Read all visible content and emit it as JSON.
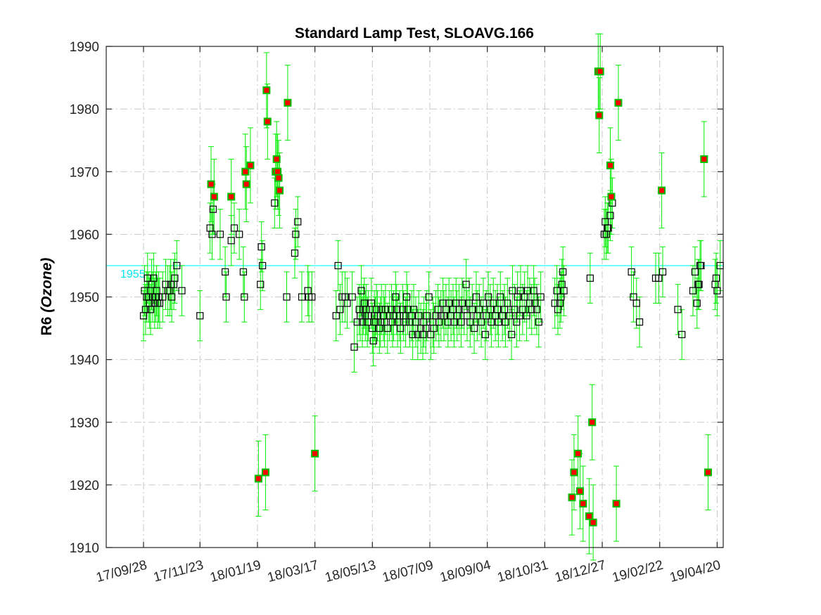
{
  "chart_data": {
    "type": "scatter",
    "title": "Standard Lamp Test, SLOAVG.166",
    "ylabel": "R6",
    "ylabel_suffix": "(Ozone)",
    "xlabel": "",
    "ylim": [
      1910,
      1990
    ],
    "xlim": [
      "2017-08-22",
      "2019-04-26"
    ],
    "y_ticks": [
      1910,
      1920,
      1930,
      1940,
      1950,
      1960,
      1970,
      1980,
      1990
    ],
    "x_ticks": [
      "17/09/28",
      "17/11/23",
      "18/01/19",
      "18/03/17",
      "18/05/13",
      "18/07/09",
      "18/09/04",
      "18/10/31",
      "18/12/27",
      "19/02/22",
      "19/04/20"
    ],
    "x_tick_dates": [
      "2017-09-28",
      "2017-11-23",
      "2018-01-19",
      "2018-03-17",
      "2018-05-13",
      "2018-07-09",
      "2018-09-04",
      "2018-10-31",
      "2018-12-27",
      "2019-02-22",
      "2019-04-20"
    ],
    "grid": true,
    "reference_line": {
      "value": 1955,
      "label": "1955",
      "color": "#00ffff"
    },
    "colors": {
      "marker_edge": "#000000",
      "outlier_fill": "#ff0000",
      "outlier_edge": "#00c000",
      "errorbar": "#00ee00"
    },
    "series": [
      {
        "name": "",
        "marker": "square-open",
        "error": 4,
        "points": [
          [
            "2017-09-28",
            1947
          ],
          [
            "2017-09-29",
            1951
          ],
          [
            "2017-09-30",
            1948
          ],
          [
            "2017-10-01",
            1950
          ],
          [
            "2017-10-02",
            1953
          ],
          [
            "2017-10-03",
            1950
          ],
          [
            "2017-10-04",
            1949
          ],
          [
            "2017-10-05",
            1948
          ],
          [
            "2017-10-06",
            1952
          ],
          [
            "2017-10-07",
            1950
          ],
          [
            "2017-10-08",
            1953
          ],
          [
            "2017-10-09",
            1949
          ],
          [
            "2017-10-10",
            1950
          ],
          [
            "2017-10-11",
            1951
          ],
          [
            "2017-10-12",
            1949
          ],
          [
            "2017-10-13",
            1950
          ],
          [
            "2017-10-14",
            1949
          ],
          [
            "2017-10-17",
            1950
          ],
          [
            "2017-10-20",
            1952
          ],
          [
            "2017-10-22",
            1951
          ],
          [
            "2017-10-24",
            1951
          ],
          [
            "2017-10-25",
            1952
          ],
          [
            "2017-10-26",
            1950
          ],
          [
            "2017-10-28",
            1952
          ],
          [
            "2017-10-29",
            1953
          ],
          [
            "2017-10-31",
            1955
          ],
          [
            "2017-11-05",
            1951
          ],
          [
            "2017-11-23",
            1947
          ],
          [
            "2017-12-03",
            1961
          ],
          [
            "2017-12-05",
            1960
          ],
          [
            "2017-12-06",
            1964
          ],
          [
            "2017-12-13",
            1960
          ],
          [
            "2017-12-18",
            1954
          ],
          [
            "2017-12-19",
            1950
          ],
          [
            "2017-12-24",
            1959
          ],
          [
            "2017-12-27",
            1961
          ],
          [
            "2018-01-01",
            1960
          ],
          [
            "2018-01-05",
            1954
          ],
          [
            "2018-01-06",
            1950
          ],
          [
            "2018-01-22",
            1952
          ],
          [
            "2018-01-23",
            1958
          ],
          [
            "2018-01-24",
            1955
          ],
          [
            "2018-02-05",
            1965
          ],
          [
            "2018-02-17",
            1950
          ],
          [
            "2018-02-25",
            1957
          ],
          [
            "2018-02-26",
            1960
          ],
          [
            "2018-02-28",
            1962
          ],
          [
            "2018-03-04",
            1950
          ],
          [
            "2018-03-10",
            1951
          ],
          [
            "2018-03-11",
            1950
          ],
          [
            "2018-03-14",
            1950
          ],
          [
            "2018-04-07",
            1947
          ],
          [
            "2018-04-09",
            1955
          ],
          [
            "2018-04-11",
            1948
          ],
          [
            "2018-04-13",
            1950
          ],
          [
            "2018-04-16",
            1950
          ],
          [
            "2018-04-18",
            1949
          ],
          [
            "2018-04-23",
            1950
          ],
          [
            "2018-04-25",
            1942
          ],
          [
            "2018-04-28",
            1946
          ],
          [
            "2018-04-30",
            1948
          ],
          [
            "2018-05-01",
            1947
          ],
          [
            "2018-05-02",
            1951
          ],
          [
            "2018-05-03",
            1946
          ],
          [
            "2018-05-04",
            1948
          ],
          [
            "2018-05-05",
            1949
          ],
          [
            "2018-05-06",
            1947
          ],
          [
            "2018-05-07",
            1948
          ],
          [
            "2018-05-08",
            1946
          ],
          [
            "2018-05-09",
            1947
          ],
          [
            "2018-05-12",
            1949
          ],
          [
            "2018-05-13",
            1945
          ],
          [
            "2018-05-14",
            1943
          ],
          [
            "2018-05-15",
            1947
          ],
          [
            "2018-05-16",
            1946
          ],
          [
            "2018-05-17",
            1948
          ],
          [
            "2018-05-18",
            1947
          ],
          [
            "2018-05-20",
            1945
          ],
          [
            "2018-05-21",
            1946
          ],
          [
            "2018-05-22",
            1948
          ],
          [
            "2018-05-24",
            1947
          ],
          [
            "2018-05-25",
            1946
          ],
          [
            "2018-05-26",
            1948
          ],
          [
            "2018-05-28",
            1945
          ],
          [
            "2018-05-30",
            1947
          ],
          [
            "2018-06-01",
            1948
          ],
          [
            "2018-06-02",
            1946
          ],
          [
            "2018-06-03",
            1947
          ],
          [
            "2018-06-05",
            1950
          ],
          [
            "2018-06-06",
            1948
          ],
          [
            "2018-06-07",
            1946
          ],
          [
            "2018-06-09",
            1947
          ],
          [
            "2018-06-10",
            1945
          ],
          [
            "2018-06-12",
            1948
          ],
          [
            "2018-06-13",
            1947
          ],
          [
            "2018-06-15",
            1946
          ],
          [
            "2018-06-16",
            1950
          ],
          [
            "2018-06-17",
            1948
          ],
          [
            "2018-06-19",
            1946
          ],
          [
            "2018-06-21",
            1947
          ],
          [
            "2018-06-22",
            1944
          ],
          [
            "2018-06-23",
            1948
          ],
          [
            "2018-06-25",
            1946
          ],
          [
            "2018-06-27",
            1944
          ],
          [
            "2018-06-28",
            1947
          ],
          [
            "2018-06-30",
            1945
          ],
          [
            "2018-07-02",
            1944
          ],
          [
            "2018-07-03",
            1946
          ],
          [
            "2018-07-05",
            1945
          ],
          [
            "2018-07-06",
            1947
          ],
          [
            "2018-07-08",
            1950
          ],
          [
            "2018-07-10",
            1944
          ],
          [
            "2018-07-12",
            1946
          ],
          [
            "2018-07-13",
            1945
          ],
          [
            "2018-07-15",
            1947
          ],
          [
            "2018-07-17",
            1948
          ],
          [
            "2018-07-18",
            1946
          ],
          [
            "2018-07-20",
            1947
          ],
          [
            "2018-07-22",
            1949
          ],
          [
            "2018-07-23",
            1947
          ],
          [
            "2018-07-25",
            1948
          ],
          [
            "2018-07-27",
            1946
          ],
          [
            "2018-07-28",
            1949
          ],
          [
            "2018-07-30",
            1947
          ],
          [
            "2018-08-01",
            1948
          ],
          [
            "2018-08-02",
            1946
          ],
          [
            "2018-08-04",
            1949
          ],
          [
            "2018-08-05",
            1947
          ],
          [
            "2018-08-07",
            1948
          ],
          [
            "2018-08-09",
            1946
          ],
          [
            "2018-08-10",
            1949
          ],
          [
            "2018-08-12",
            1948
          ],
          [
            "2018-08-14",
            1952
          ],
          [
            "2018-08-15",
            1947
          ],
          [
            "2018-08-17",
            1949
          ],
          [
            "2018-08-18",
            1946
          ],
          [
            "2018-08-20",
            1948
          ],
          [
            "2018-08-22",
            1945
          ],
          [
            "2018-08-24",
            1950
          ],
          [
            "2018-08-25",
            1947
          ],
          [
            "2018-08-27",
            1948
          ],
          [
            "2018-08-29",
            1946
          ],
          [
            "2018-08-31",
            1949
          ],
          [
            "2018-09-02",
            1944
          ],
          [
            "2018-09-03",
            1947
          ],
          [
            "2018-09-05",
            1950
          ],
          [
            "2018-09-07",
            1948
          ],
          [
            "2018-09-08",
            1946
          ],
          [
            "2018-09-10",
            1949
          ],
          [
            "2018-09-12",
            1947
          ],
          [
            "2018-09-14",
            1948
          ],
          [
            "2018-09-15",
            1946
          ],
          [
            "2018-09-17",
            1950
          ],
          [
            "2018-09-19",
            1947
          ],
          [
            "2018-09-21",
            1948
          ],
          [
            "2018-09-22",
            1946
          ],
          [
            "2018-09-24",
            1949
          ],
          [
            "2018-09-26",
            1947
          ],
          [
            "2018-09-28",
            1944
          ],
          [
            "2018-09-29",
            1951
          ],
          [
            "2018-10-01",
            1948
          ],
          [
            "2018-10-03",
            1946
          ],
          [
            "2018-10-04",
            1950
          ],
          [
            "2018-10-06",
            1947
          ],
          [
            "2018-10-07",
            1951
          ],
          [
            "2018-10-09",
            1948
          ],
          [
            "2018-10-11",
            1950
          ],
          [
            "2018-10-13",
            1947
          ],
          [
            "2018-10-14",
            1951
          ],
          [
            "2018-10-16",
            1949
          ],
          [
            "2018-10-18",
            1948
          ],
          [
            "2018-10-20",
            1951
          ],
          [
            "2018-10-21",
            1949
          ],
          [
            "2018-10-23",
            1948
          ],
          [
            "2018-10-25",
            1946
          ],
          [
            "2018-10-27",
            1950
          ],
          [
            "2018-11-10",
            1949
          ],
          [
            "2018-11-12",
            1951
          ],
          [
            "2018-11-13",
            1948
          ],
          [
            "2018-11-15",
            1949
          ],
          [
            "2018-11-16",
            1950
          ],
          [
            "2018-11-17",
            1952
          ],
          [
            "2018-11-18",
            1954
          ],
          [
            "2018-11-19",
            1951
          ],
          [
            "2018-12-15",
            1953
          ],
          [
            "2018-12-29",
            1960
          ],
          [
            "2018-12-30",
            1962
          ],
          [
            "2018-12-31",
            1960
          ],
          [
            "2019-01-01",
            1961
          ],
          [
            "2019-01-02",
            1961
          ],
          [
            "2019-01-04",
            1963
          ],
          [
            "2019-01-06",
            1965
          ],
          [
            "2019-01-25",
            1954
          ],
          [
            "2019-01-27",
            1950
          ],
          [
            "2019-01-30",
            1949
          ],
          [
            "2019-02-02",
            1946
          ],
          [
            "2019-02-18",
            1953
          ],
          [
            "2019-02-21",
            1953
          ],
          [
            "2019-02-25",
            1954
          ],
          [
            "2019-03-12",
            1948
          ],
          [
            "2019-03-16",
            1944
          ],
          [
            "2019-03-27",
            1951
          ],
          [
            "2019-03-29",
            1954
          ],
          [
            "2019-03-31",
            1949
          ],
          [
            "2019-04-01",
            1952
          ],
          [
            "2019-04-02",
            1952
          ],
          [
            "2019-04-03",
            1955
          ],
          [
            "2019-04-04",
            1955
          ],
          [
            "2019-04-18",
            1952
          ],
          [
            "2019-04-19",
            1953
          ],
          [
            "2019-04-20",
            1951
          ],
          [
            "2019-04-23",
            1955
          ]
        ]
      },
      {
        "name": "",
        "marker": "square-filled",
        "error": 6,
        "points": [
          [
            "2017-12-04",
            1968
          ],
          [
            "2017-12-07",
            1966
          ],
          [
            "2017-12-24",
            1966
          ],
          [
            "2018-01-07",
            1970
          ],
          [
            "2018-01-08",
            1968
          ],
          [
            "2018-01-12",
            1971
          ],
          [
            "2018-01-20",
            1921
          ],
          [
            "2018-01-27",
            1922
          ],
          [
            "2018-01-28",
            1983
          ],
          [
            "2018-01-29",
            1978
          ],
          [
            "2018-02-06",
            1970
          ],
          [
            "2018-02-07",
            1972
          ],
          [
            "2018-02-08",
            1970
          ],
          [
            "2018-02-09",
            1969
          ],
          [
            "2018-02-10",
            1967
          ],
          [
            "2018-02-18",
            1981
          ],
          [
            "2018-03-17",
            1925
          ],
          [
            "2018-11-27",
            1918
          ],
          [
            "2018-11-29",
            1922
          ],
          [
            "2018-12-03",
            1925
          ],
          [
            "2018-12-05",
            1919
          ],
          [
            "2018-12-08",
            1917
          ],
          [
            "2018-12-14",
            1915
          ],
          [
            "2018-12-18",
            1914
          ],
          [
            "2018-12-17",
            1930
          ],
          [
            "2018-12-23",
            1986
          ],
          [
            "2018-12-25",
            1986
          ],
          [
            "2018-12-24",
            1979
          ],
          [
            "2019-01-04",
            1971
          ],
          [
            "2019-01-05",
            1966
          ],
          [
            "2019-01-10",
            1917
          ],
          [
            "2019-01-12",
            1981
          ],
          [
            "2019-02-24",
            1967
          ],
          [
            "2019-04-07",
            1972
          ],
          [
            "2019-04-11",
            1922
          ]
        ]
      }
    ]
  }
}
